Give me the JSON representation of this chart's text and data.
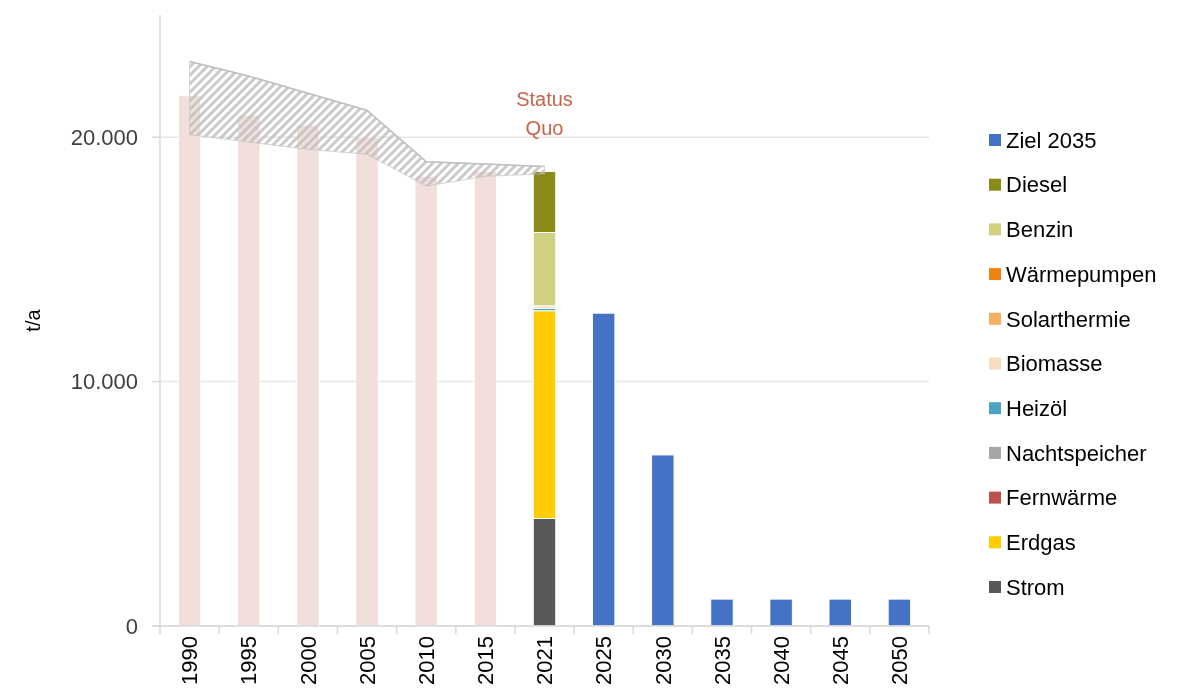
{
  "chart_data": {
    "type": "bar",
    "ylabel": "t/a",
    "categories": [
      "1990",
      "1995",
      "2000",
      "2005",
      "2010",
      "2015",
      "2021",
      "2025",
      "2030",
      "2035",
      "2040",
      "2045",
      "2050"
    ],
    "ylim": [
      0,
      25000
    ],
    "yticks": [
      0,
      {
        "value": 10000,
        "label": "10.000"
      },
      {
        "value": 20000,
        "label": "20.000"
      }
    ],
    "grid": "y",
    "legend": "right",
    "annotations": [
      "Status Quo"
    ],
    "series": [
      {
        "type": "line",
        "color": "#bfbfbf",
        "values": [
          23100,
          22500,
          21800,
          21100,
          19000,
          18900,
          18800,
          null,
          null,
          null,
          null,
          null,
          null
        ],
        "upper": [
          23100,
          22500,
          21800,
          21100,
          19000,
          18900,
          18800,
          null,
          null,
          null,
          null,
          null,
          null
        ],
        "lower": [
          20100,
          19800,
          19500,
          19300,
          18000,
          18400,
          18500,
          null,
          null,
          null,
          null,
          null,
          null
        ]
      },
      {
        "color": "#f2dfdc",
        "values": [
          21700,
          20900,
          20500,
          20000,
          18400,
          18600,
          null,
          null,
          null,
          null,
          null,
          null,
          null
        ]
      },
      {
        "name": "Strom",
        "color": "#595959",
        "values": [
          null,
          null,
          null,
          null,
          null,
          null,
          4400,
          null,
          null,
          null,
          null,
          null,
          null
        ],
        "base": [
          null,
          null,
          null,
          null,
          null,
          null,
          0,
          null,
          null,
          null,
          null,
          null,
          null
        ]
      },
      {
        "name": "Erdgas",
        "color": "#ffcc00",
        "values": [
          null,
          null,
          null,
          null,
          null,
          null,
          8500,
          null,
          null,
          null,
          null,
          null,
          null
        ],
        "base": [
          null,
          null,
          null,
          null,
          null,
          null,
          4400,
          null,
          null,
          null,
          null,
          null,
          null
        ]
      },
      {
        "name": "Fernwärme",
        "color": "#c0504d",
        "values": [
          null,
          null,
          null,
          null,
          null,
          null,
          null,
          null,
          null,
          null,
          null,
          null,
          null
        ]
      },
      {
        "name": "Nachtspeicher",
        "color": "#a6a6a6",
        "values": [
          null,
          null,
          null,
          null,
          null,
          null,
          null,
          null,
          null,
          null,
          null,
          null,
          null
        ]
      },
      {
        "name": "Heizöl",
        "color": "#4aa3c1",
        "values": [
          null,
          null,
          null,
          null,
          null,
          null,
          100,
          null,
          null,
          null,
          null,
          null,
          null
        ],
        "base": [
          null,
          null,
          null,
          null,
          null,
          null,
          12900,
          null,
          null,
          null,
          null,
          null,
          null
        ]
      },
      {
        "name": "Biomasse",
        "color": "#f8dcc0",
        "values": [
          null,
          null,
          null,
          null,
          null,
          null,
          100,
          null,
          null,
          null,
          null,
          null,
          null
        ],
        "base": [
          null,
          null,
          null,
          null,
          null,
          null,
          13000,
          null,
          null,
          null,
          null,
          null,
          null
        ]
      },
      {
        "name": "Solarthermie",
        "color": "#f4b060",
        "values": [
          null,
          null,
          null,
          null,
          null,
          null,
          null,
          null,
          null,
          null,
          null,
          null,
          null
        ]
      },
      {
        "name": "Wärmepumpen",
        "color": "#f0820f",
        "values": [
          null,
          null,
          null,
          null,
          null,
          null,
          null,
          null,
          null,
          null,
          null,
          null,
          null
        ]
      },
      {
        "name": "Benzin",
        "color": "#d1cf80",
        "values": [
          null,
          null,
          null,
          null,
          null,
          null,
          3000,
          null,
          null,
          null,
          null,
          null,
          null
        ],
        "base": [
          null,
          null,
          null,
          null,
          null,
          null,
          13100,
          null,
          null,
          null,
          null,
          null,
          null
        ]
      },
      {
        "name": "Diesel",
        "color": "#8b8b1a",
        "values": [
          null,
          null,
          null,
          null,
          null,
          null,
          2500,
          null,
          null,
          null,
          null,
          null,
          null
        ],
        "base": [
          null,
          null,
          null,
          null,
          null,
          null,
          16100,
          null,
          null,
          null,
          null,
          null,
          null
        ]
      },
      {
        "name": "Ziel 2035",
        "color": "#4472c4",
        "values": [
          null,
          null,
          null,
          null,
          null,
          null,
          null,
          12800,
          7000,
          1100,
          1100,
          1100,
          1100
        ]
      }
    ]
  }
}
